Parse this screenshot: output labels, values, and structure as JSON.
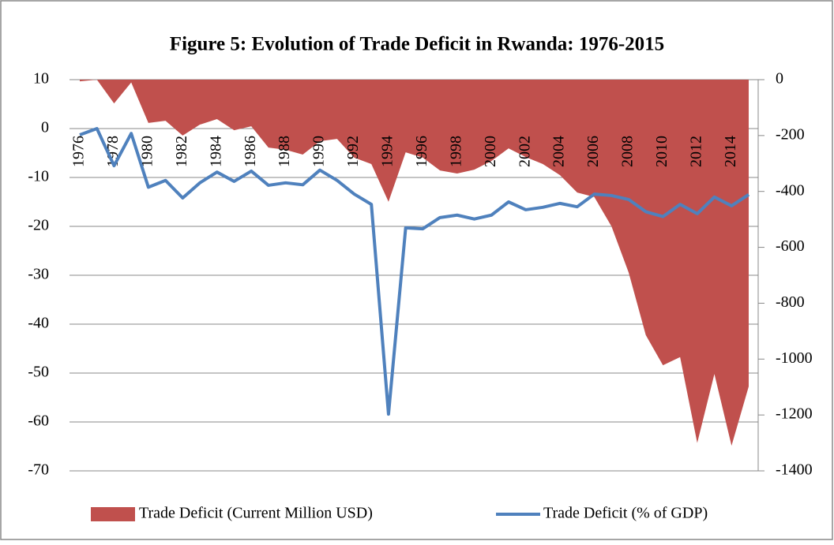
{
  "chart_data": {
    "type": "area-line",
    "title": "Figure 5: Evolution of Trade Deficit in Rwanda: 1976-2015",
    "categories": [
      "1976",
      null,
      "1978",
      null,
      "1980",
      null,
      "1982",
      null,
      "1984",
      null,
      "1986",
      null,
      "1988",
      null,
      "1990",
      null,
      "1992",
      null,
      "1994",
      null,
      "1996",
      null,
      "1998",
      null,
      "2000",
      null,
      "2002",
      null,
      "2004",
      null,
      "2006",
      null,
      "2008",
      null,
      "2010",
      null,
      "2012",
      null,
      "2014",
      null
    ],
    "ylim": [
      -70,
      10
    ],
    "yticks": [
      -70,
      -60,
      -50,
      -40,
      -30,
      -20,
      -10,
      0,
      10
    ],
    "y2lim": [
      -1400,
      0
    ],
    "y2ticks": [
      -1400,
      -1200,
      -1000,
      -800,
      -600,
      -400,
      -200,
      0
    ],
    "grid": true,
    "legend": "bottom",
    "series": [
      {
        "name": "Trade Deficit (Current Million USD)",
        "type": "area",
        "axis": "y2",
        "color": "#c0504d",
        "values": [
          -6,
          0,
          -85,
          -10,
          -155,
          -147,
          -200,
          -161,
          -141,
          -181,
          -167,
          -243,
          -251,
          -268,
          -220,
          -212,
          -279,
          -302,
          -437,
          -260,
          -279,
          -325,
          -336,
          -322,
          -291,
          -246,
          -277,
          -302,
          -342,
          -404,
          -420,
          -525,
          -690,
          -914,
          -1022,
          -993,
          -1300,
          -1053,
          -1310,
          -1098
        ]
      },
      {
        "name": "Trade Deficit (% of GDP)",
        "type": "line",
        "axis": "y",
        "color": "#4f81bd",
        "values": [
          -1.3,
          0,
          -7.6,
          -1,
          -12,
          -10.6,
          -14.2,
          -11.1,
          -8.9,
          -10.8,
          -8.7,
          -11.6,
          -11.1,
          -11.5,
          -8.5,
          -10.6,
          -13.4,
          -15.5,
          -58.4,
          -20.3,
          -20.5,
          -18.2,
          -17.7,
          -18.5,
          -17.7,
          -15,
          -16.6,
          -16.1,
          -15.3,
          -16,
          -13.4,
          -13.7,
          -14.5,
          -17,
          -18,
          -15.5,
          -17.4,
          -14,
          -15.8,
          -13.5
        ]
      }
    ]
  }
}
